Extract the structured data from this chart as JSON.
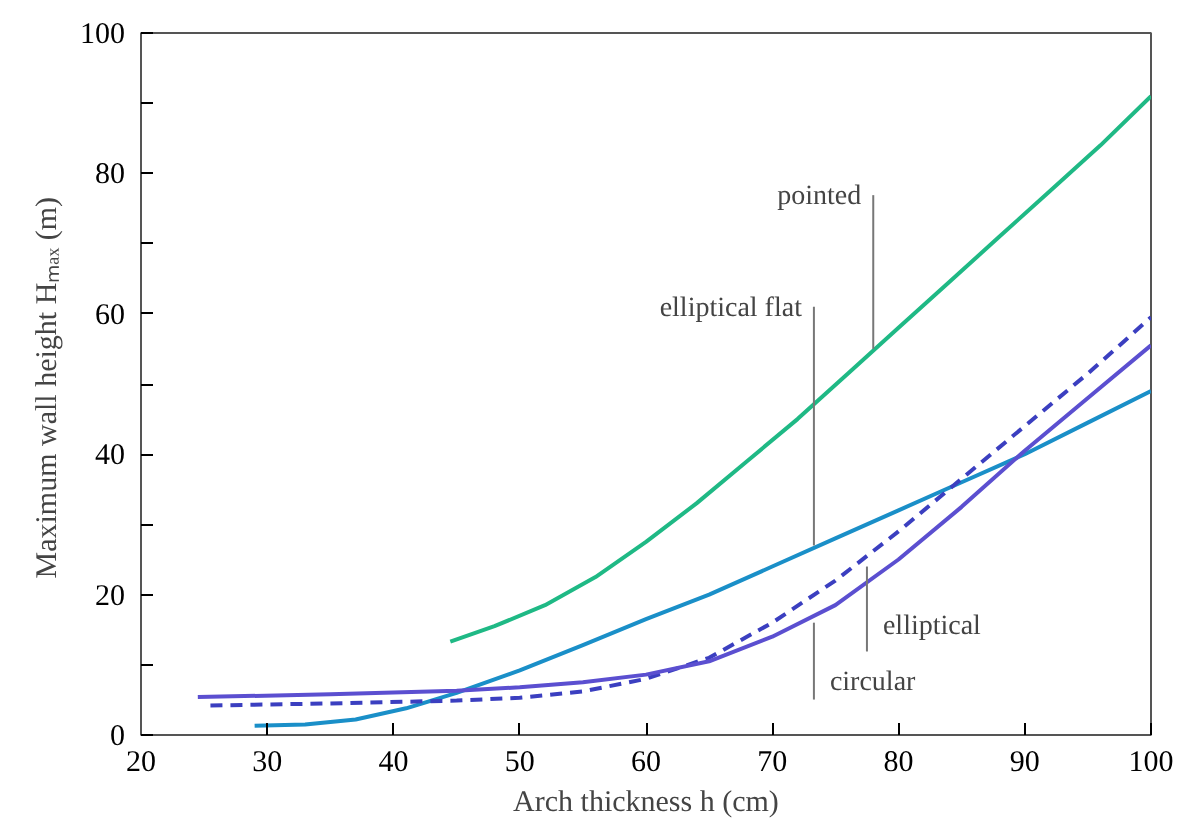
{
  "chart_data": {
    "type": "line",
    "xlabel": "Arch thickness h (cm)",
    "ylabel": "Maximum wall height  Hₘₐₓ (m)",
    "xlim": [
      20,
      100
    ],
    "xticks": [
      20,
      30,
      40,
      50,
      60,
      70,
      80,
      90,
      100
    ],
    "ylim": [
      0,
      100
    ],
    "yticks": [
      0,
      {
        "value": 10,
        "label": null
      },
      20,
      {
        "value": 30,
        "label": null
      },
      40,
      {
        "value": 50,
        "label": null
      },
      60,
      {
        "value": 70,
        "label": null
      },
      80,
      {
        "value": 90,
        "label": null
      },
      100
    ],
    "grid": false,
    "marker": "none",
    "series": [
      {
        "color": "#1fb985",
        "line_style": "solid",
        "x": [
          44.5,
          48,
          52,
          56,
          60,
          64,
          68,
          72,
          76,
          80,
          84,
          88,
          92,
          96,
          100
        ],
        "values": [
          13.3,
          15.5,
          18.5,
          22.5,
          27.5,
          33,
          39,
          45,
          51.5,
          58,
          64.5,
          71,
          77.5,
          84,
          91
        ]
      },
      {
        "color": "#1a8fc8",
        "line_style": "solid",
        "x": [
          29,
          33,
          37,
          41,
          45,
          50,
          55,
          60,
          65,
          70,
          75,
          80,
          85,
          90,
          95,
          100
        ],
        "values": [
          1.3,
          1.5,
          2.2,
          3.8,
          6,
          9.2,
          12.8,
          16.5,
          20,
          24,
          28,
          32,
          36,
          40,
          44.5,
          49
        ]
      },
      {
        "color": "#3b3fc0",
        "line_style": "dashed",
        "x": [
          25.5,
          35,
          45,
          50,
          55,
          60,
          65,
          70,
          75,
          80,
          85,
          90,
          95,
          100
        ],
        "values": [
          4.2,
          4.5,
          4.9,
          5.3,
          6.2,
          8,
          11,
          16,
          22,
          29,
          36.5,
          44,
          51.5,
          59.5
        ]
      },
      {
        "color": "#5b4fd0",
        "line_style": "solid",
        "x": [
          24.5,
          35,
          45,
          50,
          55,
          60,
          65,
          70,
          75,
          80,
          85,
          90,
          95,
          100
        ],
        "values": [
          5.4,
          5.8,
          6.3,
          6.8,
          7.5,
          8.6,
          10.5,
          14,
          18.5,
          25,
          32.5,
          40.5,
          48,
          55.5
        ]
      }
    ],
    "annotations": [
      {
        "text": "pointed",
        "x": 78,
        "y": 55
      },
      {
        "text": "elliptical flat",
        "x": 73.3,
        "y": 27
      },
      {
        "text": "circular",
        "x": 73.3,
        "y": 16
      },
      {
        "text": "elliptical",
        "x": 77.5,
        "y": 24
      }
    ]
  }
}
